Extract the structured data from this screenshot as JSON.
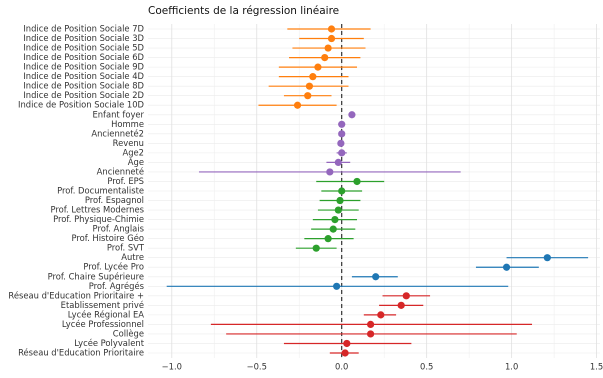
{
  "chart_data": {
    "type": "coefficient",
    "title": "Coefficients de la régression linéaire",
    "categories": [
      "Indice de Position Sociale 7D",
      "Indice de Position Sociale 3D",
      "Indice de Position Sociale 5D",
      "Indice de Position Sociale 6D",
      "Indice de Position Sociale 9D",
      "Indice de Position Sociale 4D",
      "Indice de Position Sociale 8D",
      "Indice de Position Sociale 2D",
      "Indice de Position Sociale 10D",
      "Enfant foyer",
      "Homme",
      "Ancienneté2",
      "Revenu",
      "Age2",
      "Age",
      "Ancienneté",
      "Prof. EPS",
      "Prof. Documentaliste",
      "Prof. Espagnol",
      "Prof. Lettres Modernes",
      "Prof. Physique-Chimie",
      "Prof. Anglais",
      "Prof. Histoire Géo",
      "Prof. SVT",
      "Autre",
      "Prof. Lycée Pro",
      "Prof. Chaire Supérieure",
      "Prof. Agrégés",
      "Réseau d'Education Prioritaire +",
      "Etablissement privé",
      "Lycée Régional EA",
      "Lycée Professionnel",
      "Collège",
      "Lycée Polyvalent",
      "Réseau d'Education Prioritaire"
    ],
    "values": [
      -0.06,
      -0.06,
      -0.08,
      -0.1,
      -0.14,
      -0.17,
      -0.19,
      -0.2,
      -0.26,
      0.06,
      0.0,
      0.0,
      -0.005,
      0.0,
      -0.02,
      -0.07,
      0.09,
      0.0,
      -0.01,
      -0.02,
      -0.04,
      -0.05,
      -0.08,
      -0.15,
      1.21,
      0.97,
      0.2,
      -0.03,
      0.38,
      0.35,
      0.23,
      0.17,
      0.17,
      0.03,
      0.02
    ],
    "ci_low": [
      -0.32,
      -0.25,
      -0.29,
      -0.31,
      -0.37,
      -0.37,
      -0.43,
      -0.34,
      -0.49,
      0.05,
      -0.02,
      -0.01,
      -0.02,
      -0.03,
      -0.09,
      -0.84,
      -0.15,
      -0.12,
      -0.13,
      -0.14,
      -0.17,
      -0.18,
      -0.22,
      -0.27,
      0.97,
      0.79,
      0.06,
      -1.03,
      0.24,
      0.22,
      0.13,
      -0.77,
      -0.68,
      -0.34,
      -0.07
    ],
    "ci_high": [
      0.17,
      0.13,
      0.14,
      0.11,
      0.09,
      0.04,
      0.04,
      -0.06,
      -0.03,
      0.07,
      0.02,
      0.01,
      0.01,
      0.03,
      0.05,
      0.7,
      0.25,
      0.12,
      0.11,
      0.1,
      0.09,
      0.08,
      0.07,
      -0.03,
      1.45,
      1.16,
      0.33,
      0.98,
      0.52,
      0.48,
      0.32,
      1.12,
      1.03,
      0.41,
      0.1
    ],
    "colors": [
      "#ff7f0e",
      "#ff7f0e",
      "#ff7f0e",
      "#ff7f0e",
      "#ff7f0e",
      "#ff7f0e",
      "#ff7f0e",
      "#ff7f0e",
      "#ff7f0e",
      "#9467bd",
      "#9467bd",
      "#9467bd",
      "#9467bd",
      "#9467bd",
      "#9467bd",
      "#9467bd",
      "#2ca02c",
      "#2ca02c",
      "#2ca02c",
      "#2ca02c",
      "#2ca02c",
      "#2ca02c",
      "#2ca02c",
      "#2ca02c",
      "#1f77b4",
      "#1f77b4",
      "#1f77b4",
      "#1f77b4",
      "#d62728",
      "#d62728",
      "#d62728",
      "#d62728",
      "#d62728",
      "#d62728",
      "#d62728"
    ],
    "xlim": [
      -1.14,
      1.52
    ],
    "xticks": [
      {
        "value": -1,
        "label": "−1.0"
      },
      {
        "value": -0.5,
        "label": "−0.5"
      },
      {
        "value": 0,
        "label": "0.0"
      },
      {
        "value": 0.5,
        "label": "0.5"
      },
      {
        "value": 1,
        "label": "1.0"
      },
      {
        "value": 1.5,
        "label": "1.5"
      }
    ],
    "reference_line": 0,
    "grid": true
  }
}
